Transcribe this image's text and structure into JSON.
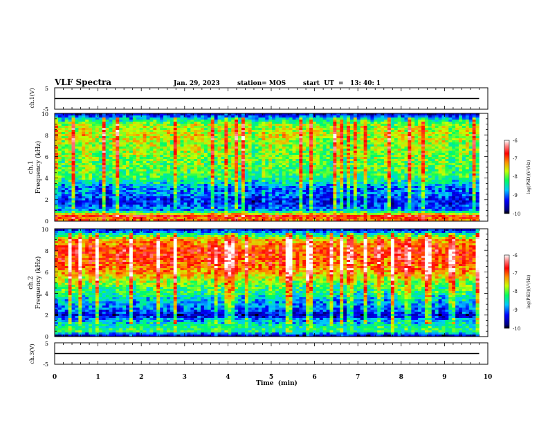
{
  "header": {
    "title": "VLF Spectra",
    "date": "Jan. 29, 2023",
    "station": "station= MOS",
    "start_ut": "start  UT  =   13: 40: 1"
  },
  "chart_data": [
    {
      "type": "line",
      "panel": "ch1-voltage",
      "ylabel": "ch.1(V)",
      "ylim": [
        -5,
        5
      ],
      "yticks": [
        "5",
        "-5"
      ],
      "x": [
        0,
        9.8
      ],
      "values": [
        0,
        0
      ],
      "color": "#000000"
    },
    {
      "type": "heatmap",
      "panel": "ch1-spectrogram",
      "ylabel_line1": "ch.1",
      "ylabel_line2": "Frequency (kHz)",
      "ylim": [
        0,
        10
      ],
      "yticks": [
        "0",
        "2",
        "4",
        "6",
        "8",
        "10"
      ],
      "xlim": [
        0,
        9.8
      ],
      "colorbar": {
        "label": "log(PSD)(V²/Hz)",
        "range": [
          -10,
          -6
        ],
        "ticks": [
          "-6",
          "-7",
          "-8",
          "-9",
          "-10"
        ]
      },
      "freq_profile_khz": [
        0,
        0.5,
        1,
        1.5,
        2,
        2.5,
        3,
        3.5,
        4,
        5,
        6,
        7,
        8,
        9,
        9.5,
        10
      ],
      "freq_profile_level": [
        -7.2,
        -6.8,
        -8.8,
        -9.2,
        -9.3,
        -8.9,
        -9.0,
        -8.6,
        -8.2,
        -8.0,
        -7.9,
        -7.8,
        -7.6,
        -7.8,
        -8.6,
        -9.6
      ]
    },
    {
      "type": "heatmap",
      "panel": "ch2-spectrogram",
      "ylabel_line1": "ch.2",
      "ylabel_line2": "Frequency (kHz)",
      "ylim": [
        0,
        10
      ],
      "yticks": [
        "0",
        "2",
        "4",
        "6",
        "8",
        "10"
      ],
      "xlim": [
        0,
        9.8
      ],
      "colorbar": {
        "label": "log(PSD)(V²/Hz)",
        "range": [
          -10,
          -6
        ],
        "ticks": [
          "-6",
          "-7",
          "-8",
          "-9",
          "-10"
        ]
      },
      "freq_profile_khz": [
        0,
        0.5,
        1,
        1.5,
        2,
        2.5,
        3,
        3.5,
        4,
        5,
        6,
        7,
        8,
        9,
        9.5,
        10
      ],
      "freq_profile_level": [
        -9.8,
        -8.2,
        -8.4,
        -8.8,
        -9.5,
        -9.0,
        -8.8,
        -8.6,
        -8.3,
        -7.9,
        -7.2,
        -6.9,
        -6.8,
        -7.3,
        -8.4,
        -9.6
      ]
    },
    {
      "type": "line",
      "panel": "ch3-voltage",
      "ylabel": "ch.3(V)",
      "ylim": [
        -5,
        5
      ],
      "yticks": [
        "5",
        "-5"
      ],
      "x": [
        0,
        9.8
      ],
      "values": [
        0,
        0
      ],
      "color": "#000000"
    }
  ],
  "x_axis": {
    "label": "Time  (min)",
    "ticks": [
      "0",
      "1",
      "2",
      "3",
      "4",
      "5",
      "6",
      "7",
      "8",
      "9",
      "10"
    ],
    "xlim": [
      0,
      10
    ]
  }
}
